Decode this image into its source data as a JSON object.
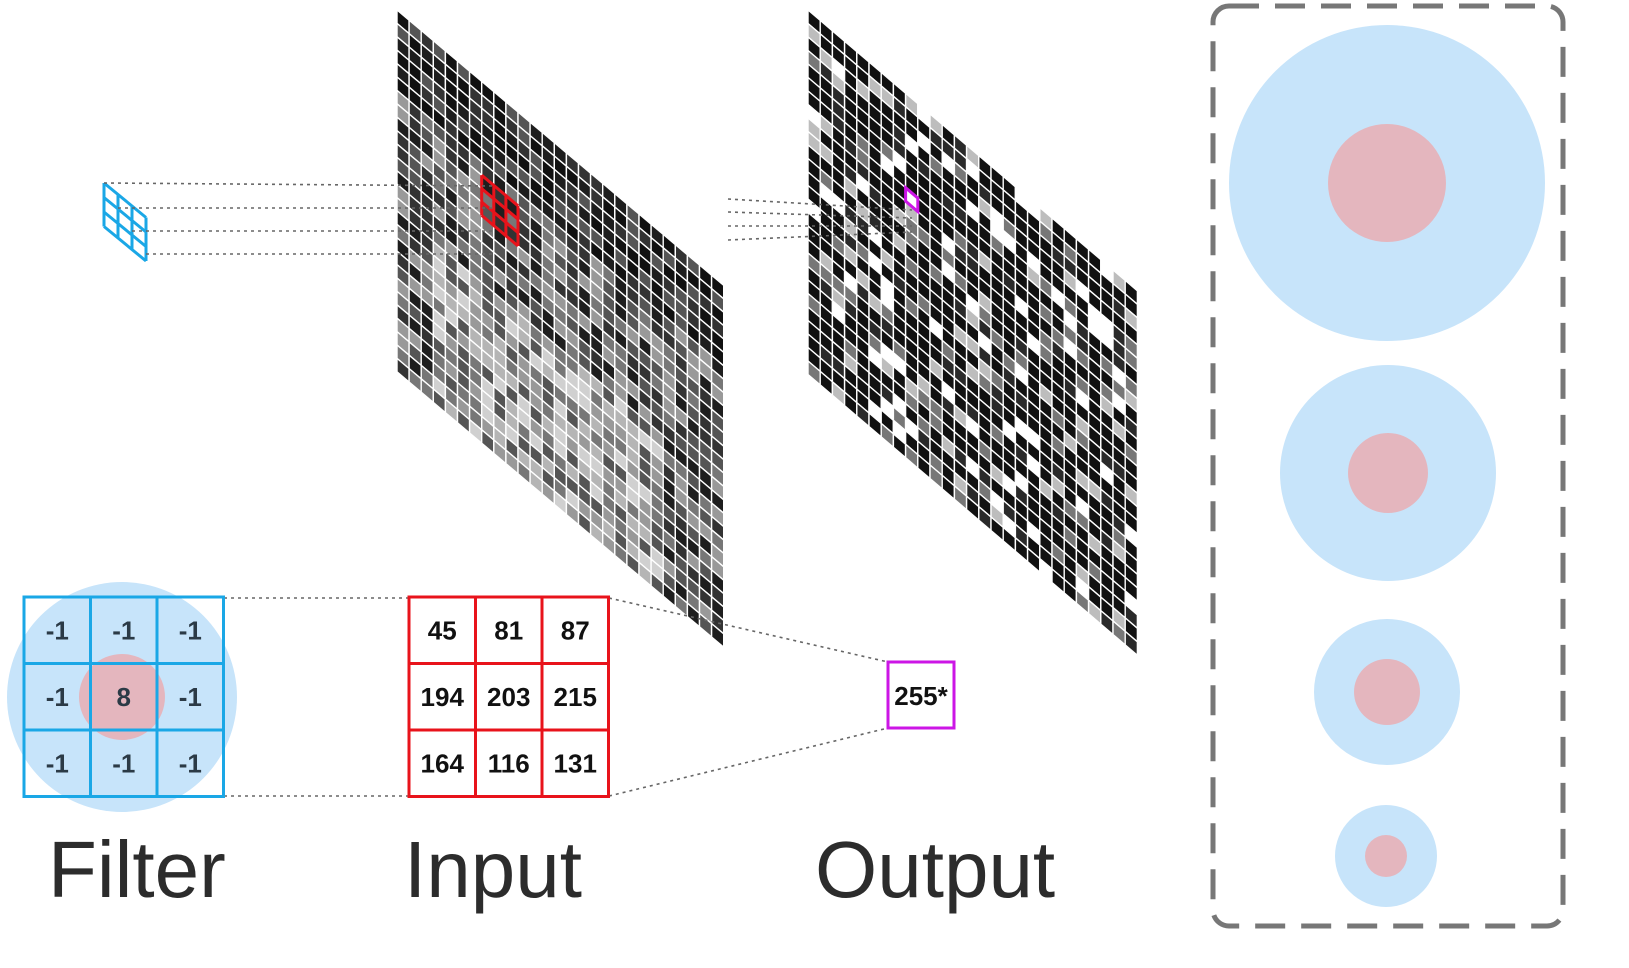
{
  "labels": {
    "filter": "Filter",
    "input": "Input",
    "output": "Output"
  },
  "filter_kernel": [
    [
      "-1",
      "-1",
      "-1"
    ],
    [
      "-1",
      "8",
      "-1"
    ],
    [
      "-1",
      "-1",
      "-1"
    ]
  ],
  "input_patch": [
    [
      "45",
      "81",
      "87"
    ],
    [
      "194",
      "203",
      "215"
    ],
    [
      "164",
      "116",
      "131"
    ]
  ],
  "output_value": "255*",
  "colors": {
    "filter_accent": "#1aa7e6",
    "input_accent": "#e8131b",
    "output_accent": "#cc16e6",
    "receptive_field_outer": "#c7e4fa",
    "receptive_field_inner": "#e4b6be",
    "panel_border": "#777777"
  },
  "receptive_field_panel": {
    "count": 4
  }
}
